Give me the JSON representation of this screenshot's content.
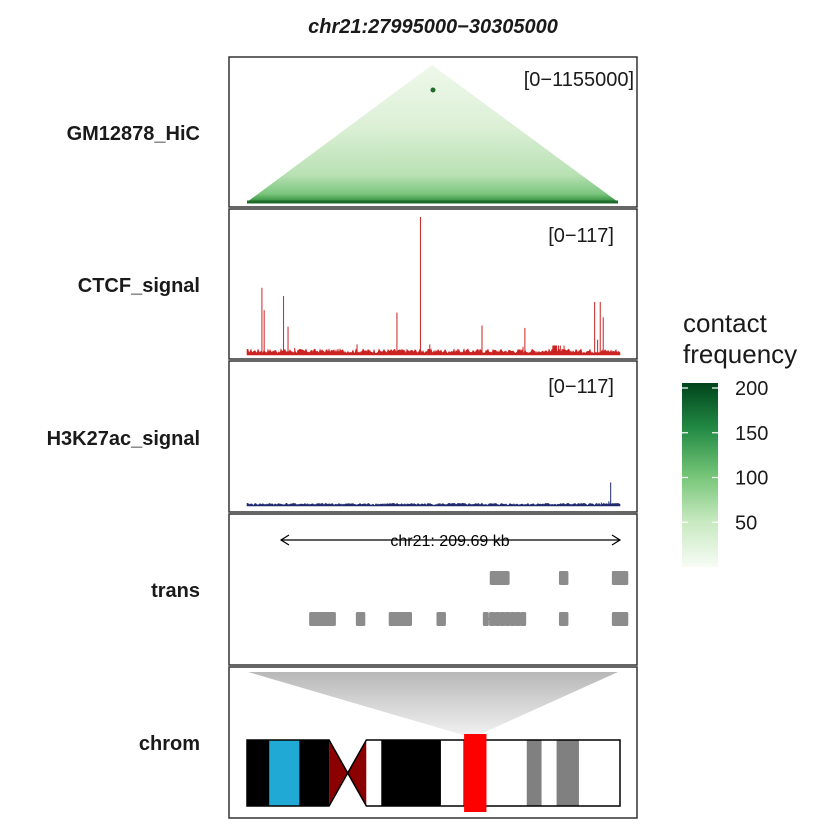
{
  "chart_data": {
    "type": "genome-browser",
    "title": "chr21:27995000−30305000",
    "region": {
      "chrom": "chr21",
      "start": 27995000,
      "end": 30305000
    },
    "tracks": [
      {
        "label": "GM12878_HiC",
        "kind": "hic-triangle",
        "range_label": "[0−1155000]",
        "colorscale": [
          "#f7fcf5",
          "#c7e9c0",
          "#74c476",
          "#238b45",
          "#00441b"
        ]
      },
      {
        "label": "CTCF_signal",
        "kind": "signal",
        "color": "#cc2222",
        "range_label": "[0−117]",
        "ylim": [
          0,
          117
        ],
        "baseline": 3.2,
        "peaks": [
          {
            "x": 0.04,
            "value": 57
          },
          {
            "x": 0.046,
            "value": 38
          },
          {
            "x": 0.098,
            "value": 50
          },
          {
            "x": 0.11,
            "value": 24
          },
          {
            "x": 0.128,
            "value": 6
          },
          {
            "x": 0.295,
            "value": 9
          },
          {
            "x": 0.402,
            "value": 36
          },
          {
            "x": 0.465,
            "value": 117
          },
          {
            "x": 0.49,
            "value": 9
          },
          {
            "x": 0.565,
            "value": 5
          },
          {
            "x": 0.63,
            "value": 25
          },
          {
            "x": 0.74,
            "value": 7
          },
          {
            "x": 0.745,
            "value": 23
          },
          {
            "x": 0.822,
            "value": 8
          },
          {
            "x": 0.82,
            "value": 8
          },
          {
            "x": 0.835,
            "value": 8
          },
          {
            "x": 0.85,
            "value": 8
          },
          {
            "x": 0.825,
            "value": 8
          },
          {
            "x": 0.84,
            "value": 8
          },
          {
            "x": 0.824,
            "value": 8
          },
          {
            "x": 0.826,
            "value": 8
          },
          {
            "x": 0.83,
            "value": 8
          },
          {
            "x": 0.822,
            "value": 8
          },
          {
            "x": 0.824,
            "value": 8
          },
          {
            "x": 0.824,
            "value": 8
          },
          {
            "x": 0.826,
            "value": 8
          },
          {
            "x": 0.828,
            "value": 8
          },
          {
            "x": 0.826,
            "value": 8
          },
          {
            "x": 0.827,
            "value": 8
          },
          {
            "x": 0.826,
            "value": 8
          },
          {
            "x": 0.826,
            "value": 8
          },
          {
            "x": 0.826,
            "value": 8
          },
          {
            "x": 0.83,
            "value": 8
          },
          {
            "x": 0.826,
            "value": 8
          },
          {
            "x": 0.826,
            "value": 8
          },
          {
            "x": 0.826,
            "value": 8
          },
          {
            "x": 0.826,
            "value": 8
          },
          {
            "x": 0.826,
            "value": 8
          },
          {
            "x": 0.826,
            "value": 8
          },
          {
            "x": 0.826,
            "value": 8
          },
          {
            "x": 0.826,
            "value": 8
          },
          {
            "x": 0.826,
            "value": 8
          },
          {
            "x": 0.826,
            "value": 8
          },
          {
            "x": 0.826,
            "value": 8
          },
          {
            "x": 0.826,
            "value": 8
          },
          {
            "x": 0.826,
            "value": 8
          },
          {
            "x": 0.826,
            "value": 8
          },
          {
            "x": 0.826,
            "value": 8
          },
          {
            "x": 0.826,
            "value": 8
          },
          {
            "x": 0.826,
            "value": 8
          },
          {
            "x": 0.826,
            "value": 8
          },
          {
            "x": 0.826,
            "value": 8
          },
          {
            "x": 0.826,
            "value": 8
          },
          {
            "x": 0.826,
            "value": 8
          },
          {
            "x": 0.826,
            "value": 8
          },
          {
            "x": 0.826,
            "value": 8
          },
          {
            "x": 0.826,
            "value": 8
          },
          {
            "x": 0.826,
            "value": 8
          },
          {
            "x": 0.826,
            "value": 8
          },
          {
            "x": 0.826,
            "value": 8
          },
          {
            "x": 0.826,
            "value": 8
          },
          {
            "x": 0.826,
            "value": 8
          },
          {
            "x": 0.826,
            "value": 8
          },
          {
            "x": 0.826,
            "value": 8
          },
          {
            "x": 0.826,
            "value": 8
          },
          {
            "x": 0.826,
            "value": 8
          },
          {
            "x": 0.826,
            "value": 8
          },
          {
            "x": 0.826,
            "value": 8
          },
          {
            "x": 0.826,
            "value": 8
          },
          {
            "x": 0.826,
            "value": 8
          },
          {
            "x": 0.826,
            "value": 8
          },
          {
            "x": 0.826,
            "value": 8
          },
          {
            "x": 0.826,
            "value": 8
          },
          {
            "x": 0.826,
            "value": 8
          },
          {
            "x": 0.826,
            "value": 8
          },
          {
            "x": 0.826,
            "value": 8
          },
          {
            "x": 0.826,
            "value": 8
          },
          {
            "x": 0.826,
            "value": 8
          },
          {
            "x": 0.826,
            "value": 8
          },
          {
            "x": 0.826,
            "value": 8
          },
          {
            "x": 0.826,
            "value": 8
          },
          {
            "x": 0.826,
            "value": 8
          },
          {
            "x": 0.826,
            "value": 8
          },
          {
            "x": 0.826,
            "value": 8
          },
          {
            "x": 0.826,
            "value": 8
          },
          {
            "x": 0.826,
            "value": 8
          },
          {
            "x": 0.826,
            "value": 8
          },
          {
            "x": 0.826,
            "value": 8
          },
          {
            "x": 0.826,
            "value": 8
          },
          {
            "x": 0.826,
            "value": 8
          },
          {
            "x": 0.932,
            "value": 45
          },
          {
            "x": 0.94,
            "value": 13
          },
          {
            "x": 0.947,
            "value": 45
          },
          {
            "x": 0.955,
            "value": 32
          }
        ]
      },
      {
        "label": "H3K27ac_signal",
        "kind": "signal",
        "color": "#1f2b6e",
        "range_label": "[0−117]",
        "ylim": [
          0,
          117
        ],
        "baseline": 1.5,
        "peaks": [
          {
            "x": 0.975,
            "value": 20
          },
          {
            "x": 0.97,
            "value": 4
          },
          {
            "x": 0.95,
            "value": 3
          }
        ]
      },
      {
        "label": "trans",
        "kind": "genes",
        "color": "#8c8c8c",
        "scale_label": "chr21: 209.69 kb",
        "rows": [
          [
            {
              "start": 0.612,
              "end": 0.656,
              "exons": [
                0.612,
                0.622,
                0.632,
                0.642,
                0.652
              ]
            },
            {
              "start": 0.812,
              "end": 0.828,
              "exons": [
                0.812,
                0.822
              ]
            },
            {
              "start": 0.965,
              "end": 1.0,
              "exons": [
                0.965,
                0.975,
                0.985,
                0.995
              ]
            }
          ],
          [
            {
              "start": 0.09,
              "end": 0.16,
              "exons": [
                0.09,
                0.1,
                0.11,
                0.12,
                0.13,
                0.14,
                0.15
              ]
            },
            {
              "start": 0.225,
              "end": 0.24,
              "exons": [
                0.225,
                0.235
              ]
            },
            {
              "start": 0.32,
              "end": 0.378,
              "exons": [
                0.32,
                0.33,
                0.34,
                0.35,
                0.36,
                0.37
              ]
            },
            {
              "start": 0.458,
              "end": 0.478,
              "exons": [
                0.458,
                0.468
              ]
            },
            {
              "start": 0.592,
              "end": 0.705,
              "exons": [
                0.592,
                0.61,
                0.625,
                0.64,
                0.655,
                0.67,
                0.685,
                0.7
              ]
            },
            {
              "start": 0.812,
              "end": 0.828,
              "exons": [
                0.812,
                0.822
              ]
            },
            {
              "start": 0.965,
              "end": 1.0,
              "exons": [
                0.965,
                0.975,
                0.985,
                0.995
              ]
            }
          ]
        ]
      },
      {
        "label": "chrom",
        "kind": "ideogram",
        "highlight_color": "#ff0000",
        "bands": [
          {
            "start": 0.0,
            "end": 0.06,
            "color": "#000000"
          },
          {
            "start": 0.06,
            "end": 0.14,
            "color": "#1fa9d4"
          },
          {
            "start": 0.14,
            "end": 0.22,
            "color": "#000000"
          },
          {
            "start": 0.22,
            "end": 0.27,
            "color": "#8b0000",
            "kind": "cen-left"
          },
          {
            "start": 0.27,
            "end": 0.32,
            "color": "#8b0000",
            "kind": "cen-right"
          },
          {
            "start": 0.32,
            "end": 0.36,
            "color": "#ffffff"
          },
          {
            "start": 0.36,
            "end": 0.52,
            "color": "#000000"
          },
          {
            "start": 0.52,
            "end": 0.58,
            "color": "#ffffff"
          },
          {
            "start": 0.58,
            "end": 0.64,
            "color": "#3a3a3a"
          },
          {
            "start": 0.64,
            "end": 0.75,
            "color": "#ffffff"
          },
          {
            "start": 0.75,
            "end": 0.79,
            "color": "#808080"
          },
          {
            "start": 0.79,
            "end": 0.83,
            "color": "#ffffff"
          },
          {
            "start": 0.83,
            "end": 0.89,
            "color": "#808080"
          },
          {
            "start": 0.89,
            "end": 1.0,
            "color": "#ffffff"
          }
        ],
        "highlight": {
          "start": 0.582,
          "end": 0.642
        }
      }
    ],
    "legend": {
      "title_line1": "contact",
      "title_line2": "frequency",
      "ticks": [
        200,
        150,
        100,
        50
      ],
      "range": [
        0,
        200
      ],
      "colors": [
        "#f7fcf5",
        "#c7e9c0",
        "#74c476",
        "#238b45",
        "#00441b"
      ]
    }
  }
}
